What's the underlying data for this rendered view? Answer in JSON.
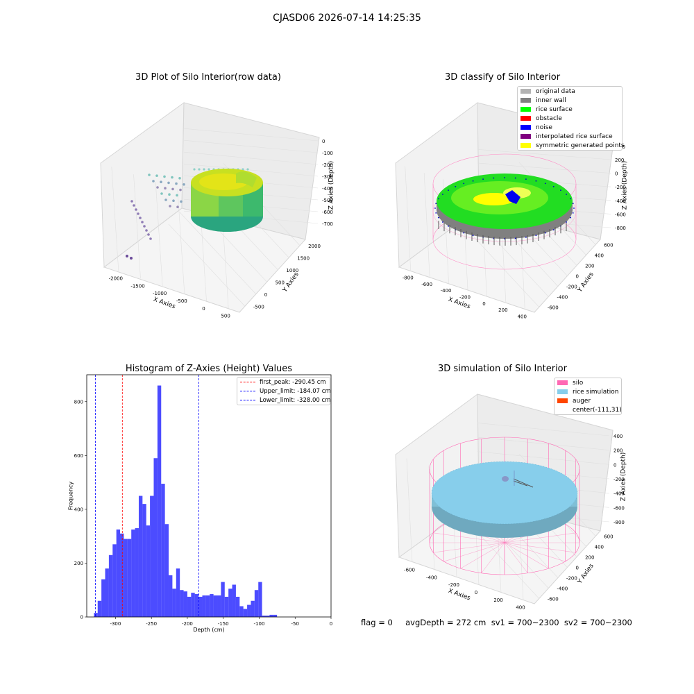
{
  "figure": {
    "suptitle": "CJASD06 2026-07-14 14:25:35",
    "status_line": "flag = 0     avgDepth = 272 cm  sv1 = 700~2300  sv2 = 700~2300"
  },
  "panel_raw": {
    "title": "3D Plot of Silo Interior(row data)",
    "xlabel": "X Axies",
    "ylabel": "Y Axies",
    "zlabel": "Z Axies (Depth)",
    "xticks": [
      "-2000",
      "-1500",
      "-1000",
      "-500",
      "0",
      "500"
    ],
    "yticks": [
      "-500",
      "0",
      "500",
      "1000",
      "1500",
      "2000"
    ],
    "zticks": [
      "0",
      "-100",
      "-200",
      "-300",
      "-400",
      "-500",
      "-600",
      "-700"
    ]
  },
  "panel_classify": {
    "title": "3D classify of Silo Interior",
    "xlabel": "X Axies",
    "ylabel": "Y Axies",
    "zlabel": "Z Axies (Depth)",
    "xticks": [
      "-800",
      "-600",
      "-400",
      "-200",
      "0",
      "200",
      "400"
    ],
    "yticks": [
      "-600",
      "-400",
      "-200",
      "0",
      "200",
      "400",
      "600"
    ],
    "zticks": [
      "200",
      "0",
      "-200",
      "-400",
      "-600",
      "-800"
    ],
    "z_partial_tick": "00",
    "legend": [
      {
        "label": "original data",
        "color": "#b3b3b3"
      },
      {
        "label": "inner wall",
        "color": "#808080"
      },
      {
        "label": "rice surface",
        "color": "#00ff00"
      },
      {
        "label": "obstacle",
        "color": "#ff0000"
      },
      {
        "label": "noise",
        "color": "#0000ff"
      },
      {
        "label": "interpolated rice surface",
        "color": "#800080"
      },
      {
        "label": "symmetric generated points",
        "color": "#ffff00"
      }
    ]
  },
  "panel_sim": {
    "title": "3D simulation of Silo Interior",
    "xlabel": "X Axies",
    "ylabel": "Y Axies",
    "zlabel": "Z Axies (Depth)",
    "xticks": [
      "-600",
      "-400",
      "-200",
      "0",
      "200",
      "400"
    ],
    "yticks": [
      "-600",
      "-400",
      "-200",
      "0",
      "200",
      "400",
      "600"
    ],
    "zticks": [
      "400",
      "200",
      "0",
      "-200",
      "-400",
      "-600",
      "-800"
    ],
    "legend": [
      {
        "label": "silo",
        "color": "#ff69b4"
      },
      {
        "label": "rice simulation",
        "color": "#87ceeb"
      },
      {
        "label": "auger",
        "color": "#ff4500"
      },
      {
        "label": "center(-111,31)",
        "color": ""
      }
    ]
  },
  "chart_data": {
    "type": "bar",
    "title": "Histogram of Z-Axies (Height) Values",
    "xlabel": "Depth (cm)",
    "ylabel": "Frequency",
    "xlim": [
      -340,
      0
    ],
    "ylim": [
      0,
      900
    ],
    "xticks": [
      -300,
      -250,
      -200,
      -150,
      -100,
      -50,
      0
    ],
    "yticks": [
      0,
      200,
      400,
      600,
      800
    ],
    "bin_start": -330,
    "bin_width": 5.2,
    "bar_color": "#0000ff",
    "values": [
      15,
      60,
      140,
      180,
      230,
      270,
      325,
      310,
      290,
      290,
      325,
      330,
      450,
      420,
      340,
      450,
      590,
      860,
      495,
      345,
      155,
      105,
      180,
      100,
      95,
      75,
      90,
      85,
      75,
      80,
      80,
      85,
      80,
      80,
      130,
      75,
      105,
      120,
      75,
      40,
      30,
      45,
      60,
      100,
      130,
      5,
      5,
      8,
      8
    ],
    "vlines": [
      {
        "label": "first_peak: -290.45 cm",
        "x": -290.45,
        "color": "#ff0000"
      },
      {
        "label": "Upper_limit: -184.07 cm",
        "x": -184.07,
        "color": "#0000ff"
      },
      {
        "label": "Lower_limit: -328.00 cm",
        "x": -328.0,
        "color": "#0000ff"
      }
    ],
    "legend_position": "upper right"
  }
}
